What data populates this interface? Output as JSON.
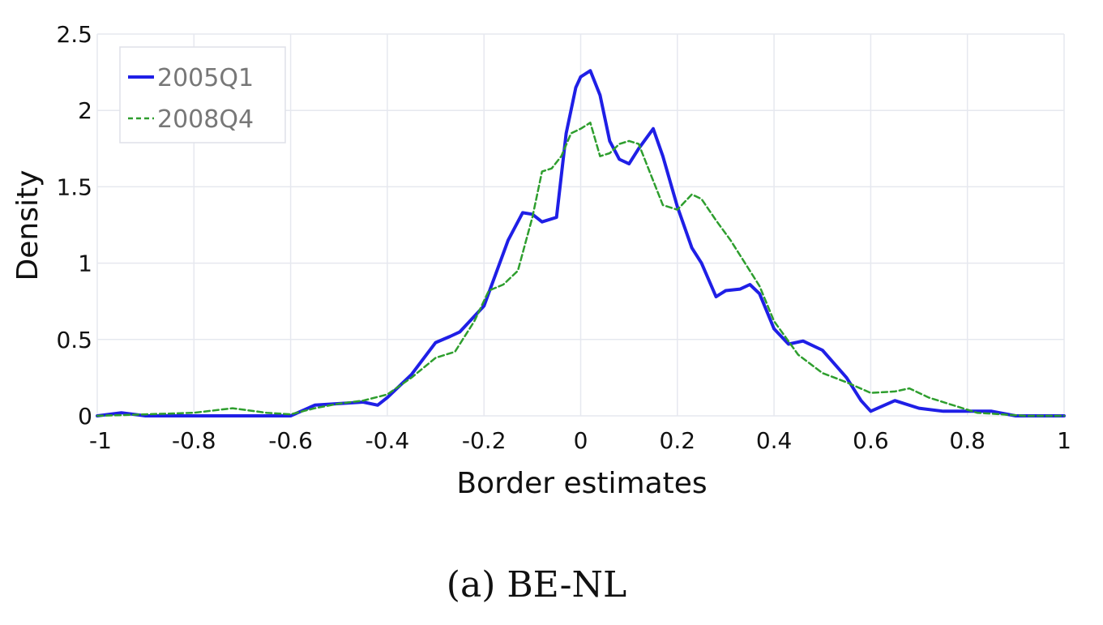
{
  "chart_data": {
    "type": "line",
    "title": "",
    "xlabel": "Border estimates",
    "ylabel": "Density",
    "caption": "(a) BE-NL",
    "xlim": [
      -1,
      1
    ],
    "ylim": [
      0,
      2.5
    ],
    "xticks": [
      "-1",
      "-0.8",
      "-0.6",
      "-0.4",
      "-0.2",
      "0",
      "0.2",
      "0.4",
      "0.6",
      "0.8",
      "1"
    ],
    "yticks": [
      "0",
      "0.5",
      "1",
      "1.5",
      "2",
      "2.5"
    ],
    "grid": true,
    "legend_position": "top-left",
    "series": [
      {
        "name": "2005Q1",
        "color": "#1f1fe6",
        "dash": "solid",
        "x": [
          -1.0,
          -0.95,
          -0.9,
          -0.8,
          -0.7,
          -0.6,
          -0.55,
          -0.5,
          -0.45,
          -0.42,
          -0.4,
          -0.35,
          -0.3,
          -0.27,
          -0.25,
          -0.2,
          -0.15,
          -0.12,
          -0.1,
          -0.08,
          -0.05,
          -0.03,
          -0.01,
          0.0,
          0.02,
          0.04,
          0.06,
          0.08,
          0.1,
          0.12,
          0.15,
          0.17,
          0.2,
          0.23,
          0.25,
          0.28,
          0.3,
          0.33,
          0.35,
          0.37,
          0.4,
          0.43,
          0.46,
          0.5,
          0.55,
          0.58,
          0.6,
          0.65,
          0.7,
          0.75,
          0.8,
          0.85,
          0.9,
          1.0
        ],
        "y": [
          0.0,
          0.02,
          0.0,
          0.0,
          0.0,
          0.0,
          0.07,
          0.08,
          0.09,
          0.07,
          0.12,
          0.27,
          0.48,
          0.52,
          0.55,
          0.72,
          1.15,
          1.33,
          1.32,
          1.27,
          1.3,
          1.85,
          2.15,
          2.22,
          2.26,
          2.1,
          1.8,
          1.68,
          1.65,
          1.75,
          1.88,
          1.7,
          1.37,
          1.1,
          1.0,
          0.78,
          0.82,
          0.83,
          0.86,
          0.8,
          0.57,
          0.47,
          0.49,
          0.43,
          0.25,
          0.1,
          0.03,
          0.1,
          0.05,
          0.03,
          0.03,
          0.03,
          0.0,
          0.0
        ]
      },
      {
        "name": "2008Q4",
        "color": "#2e9e2e",
        "dash": "dashed",
        "x": [
          -1.0,
          -0.9,
          -0.8,
          -0.72,
          -0.65,
          -0.6,
          -0.55,
          -0.5,
          -0.45,
          -0.4,
          -0.35,
          -0.3,
          -0.26,
          -0.22,
          -0.19,
          -0.16,
          -0.13,
          -0.1,
          -0.08,
          -0.06,
          -0.04,
          -0.02,
          0.0,
          0.02,
          0.04,
          0.06,
          0.08,
          0.1,
          0.12,
          0.14,
          0.17,
          0.2,
          0.23,
          0.25,
          0.28,
          0.31,
          0.34,
          0.37,
          0.4,
          0.45,
          0.5,
          0.55,
          0.6,
          0.65,
          0.68,
          0.72,
          0.78,
          0.82,
          0.87,
          0.92,
          1.0
        ],
        "y": [
          0.0,
          0.01,
          0.02,
          0.05,
          0.02,
          0.01,
          0.05,
          0.08,
          0.1,
          0.14,
          0.25,
          0.38,
          0.42,
          0.62,
          0.82,
          0.86,
          0.95,
          1.3,
          1.6,
          1.62,
          1.7,
          1.85,
          1.88,
          1.92,
          1.7,
          1.72,
          1.78,
          1.8,
          1.78,
          1.62,
          1.38,
          1.35,
          1.45,
          1.42,
          1.28,
          1.15,
          1.0,
          0.85,
          0.62,
          0.4,
          0.28,
          0.22,
          0.15,
          0.16,
          0.18,
          0.12,
          0.06,
          0.02,
          0.01,
          0.0,
          0.0
        ]
      }
    ]
  }
}
